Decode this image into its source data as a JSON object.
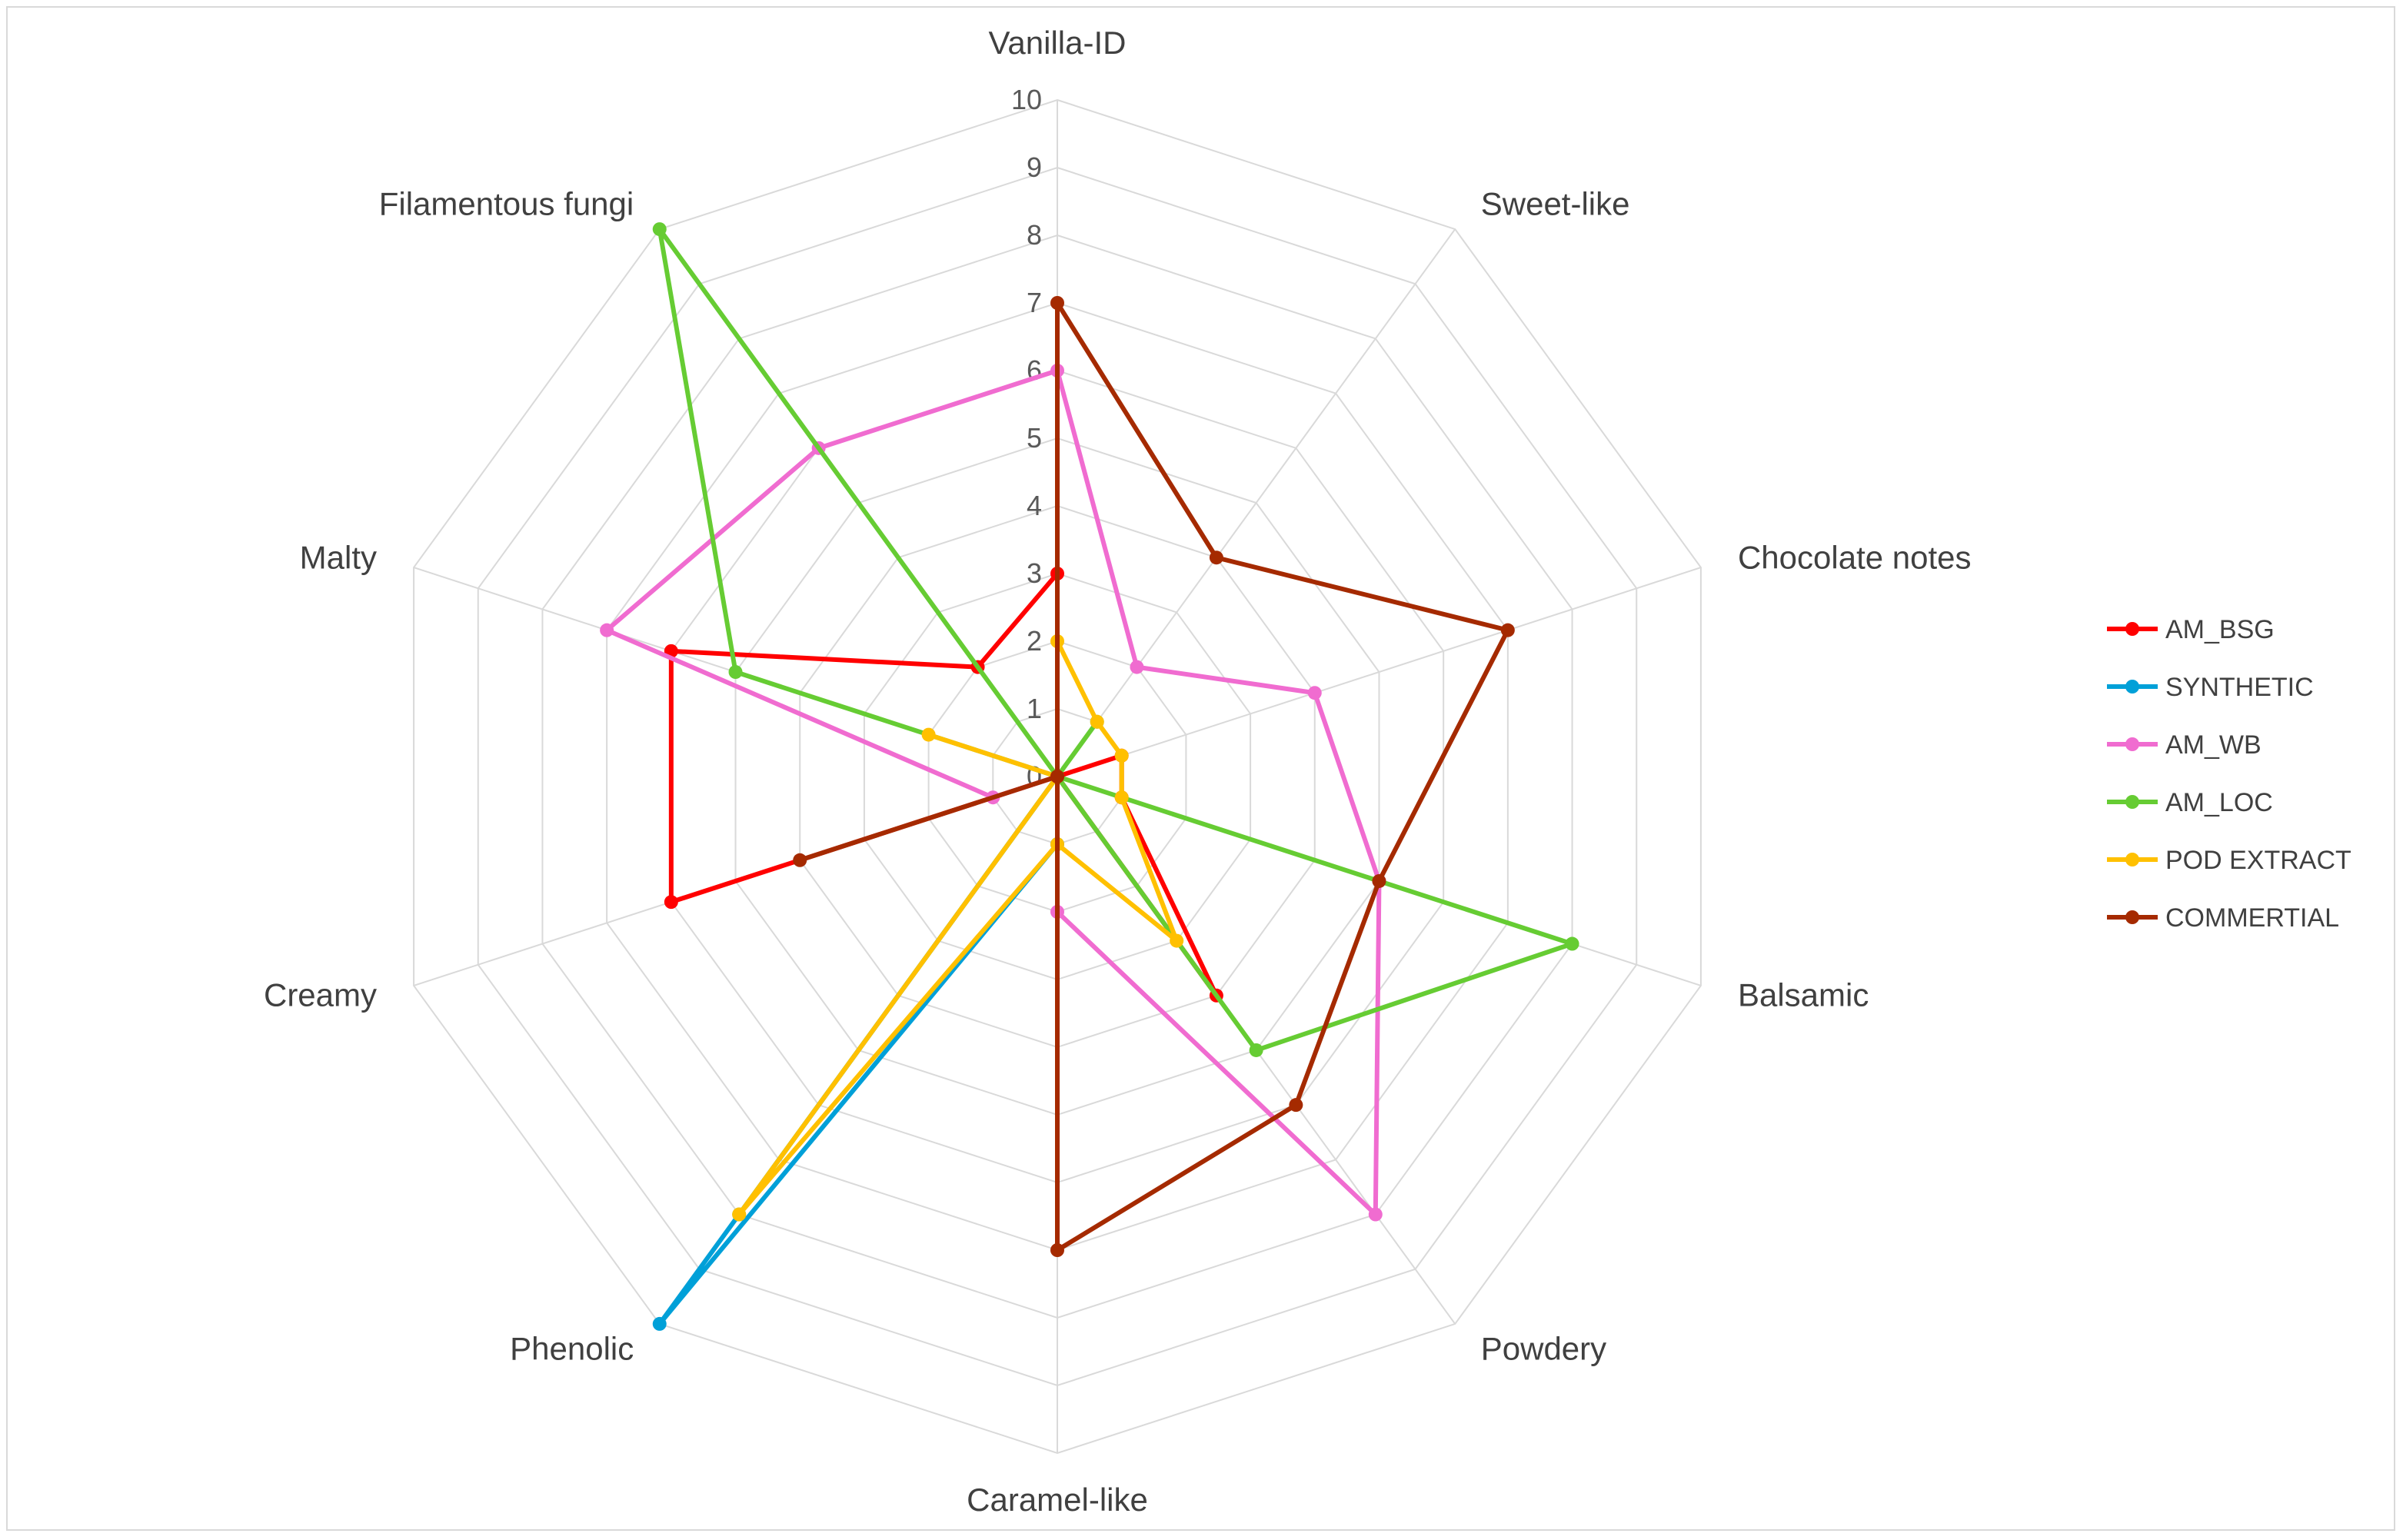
{
  "chart_data": {
    "type": "radar",
    "title": "",
    "axes": [
      "Vanilla-ID",
      "Sweet-like",
      "Chocolate notes",
      "Balsamic",
      "Powdery",
      "Caramel-like",
      "Phenolic",
      "Creamy",
      "Malty",
      "Filamentous fungi"
    ],
    "r_ticks": [
      0,
      1,
      2,
      3,
      4,
      5,
      6,
      7,
      8,
      9,
      10
    ],
    "rlim": [
      0,
      10
    ],
    "grid": true,
    "legend_position": "right",
    "series": [
      {
        "name": "AM_BSG",
        "color": "#ff0000",
        "values": [
          3,
          0,
          1,
          1,
          4,
          0,
          0,
          6,
          6,
          2
        ]
      },
      {
        "name": "SYNTHETIC",
        "color": "#00a0d8",
        "values": [
          0,
          0,
          0,
          0,
          0,
          1,
          10,
          0,
          0,
          0
        ]
      },
      {
        "name": "AM_WB",
        "color": "#f06cd0",
        "values": [
          6,
          2,
          4,
          5,
          8,
          2,
          0,
          1,
          7,
          6
        ]
      },
      {
        "name": "AM_LOC",
        "color": "#66cc33",
        "values": [
          0,
          1,
          0,
          8,
          5,
          0,
          8,
          0,
          5,
          10
        ]
      },
      {
        "name": "POD EXTRACT",
        "color": "#ffc000",
        "values": [
          2,
          1,
          1,
          1,
          3,
          1,
          8,
          0,
          2,
          0
        ]
      },
      {
        "name": "COMMERTIAL",
        "color": "#a52a00",
        "values": [
          7,
          4,
          7,
          5,
          6,
          7,
          0,
          4,
          0,
          0
        ]
      }
    ]
  }
}
